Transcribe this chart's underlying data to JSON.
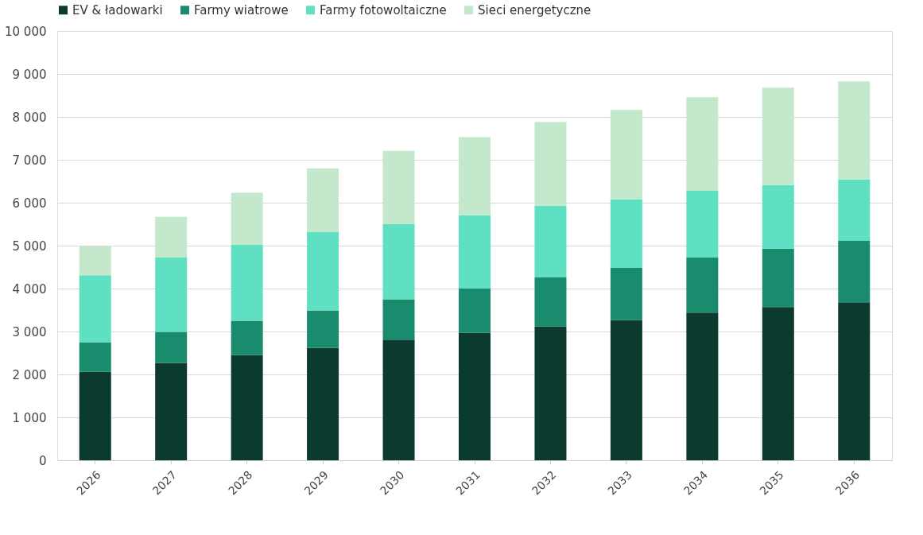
{
  "chart_data": {
    "type": "bar",
    "stacked": true,
    "legend": "top",
    "grid": "y",
    "categories": [
      "2026",
      "2027",
      "2028",
      "2029",
      "2030",
      "2031",
      "2032",
      "2033",
      "2034",
      "2035",
      "2036"
    ],
    "series": [
      {
        "name": "EV & ładowarki",
        "color": "#0b3a2e",
        "values": [
          2060,
          2270,
          2450,
          2620,
          2810,
          2970,
          3120,
          3270,
          3440,
          3570,
          3680
        ]
      },
      {
        "name": "Farmy wiatrowe",
        "color": "#1a8c6e",
        "values": [
          690,
          720,
          800,
          870,
          940,
          1030,
          1140,
          1210,
          1280,
          1360,
          1430
        ]
      },
      {
        "name": "Farmy fotowoltaiczne",
        "color": "#5fe0c3",
        "values": [
          1560,
          1730,
          1770,
          1830,
          1750,
          1710,
          1670,
          1600,
          1560,
          1480,
          1430
        ]
      },
      {
        "name": "Sieci energetyczne",
        "color": "#c3e8cb",
        "values": [
          670,
          950,
          1210,
          1480,
          1710,
          1820,
          1950,
          2080,
          2180,
          2270,
          2290
        ]
      }
    ],
    "ylim": [
      0,
      10000
    ],
    "yticks": [
      0,
      {
        "value": 1000,
        "label": "1 000"
      },
      {
        "value": 2000,
        "label": "2 000"
      },
      {
        "value": 3000,
        "label": "3 000"
      },
      {
        "value": 4000,
        "label": "4 000"
      },
      {
        "value": 5000,
        "label": "5 000"
      },
      {
        "value": 6000,
        "label": "6 000"
      },
      {
        "value": 7000,
        "label": "7 000"
      },
      {
        "value": 8000,
        "label": "8 000"
      },
      {
        "value": 9000,
        "label": "9 000"
      },
      {
        "value": 10000,
        "label": "10 000"
      }
    ]
  }
}
